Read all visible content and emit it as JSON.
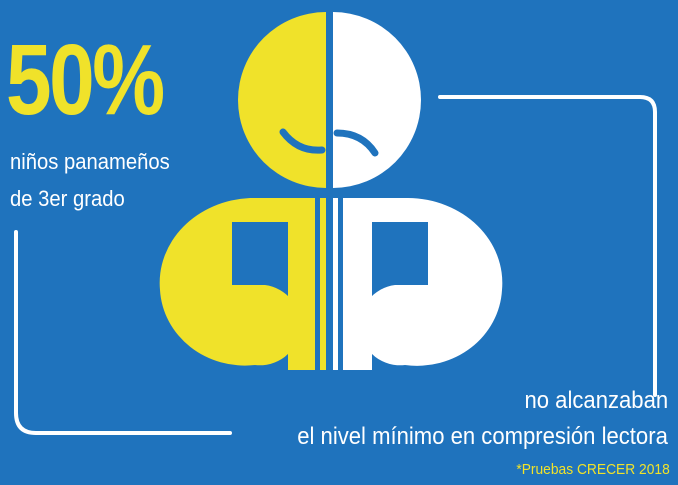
{
  "colors": {
    "background": "#1f73bd",
    "accent_yellow": "#f0e22a",
    "white": "#ffffff"
  },
  "stat": {
    "percent": "50%",
    "line1": "niños panameños",
    "line2": "de 3er grado"
  },
  "result": {
    "line1": "no alcanzaban",
    "line2": "el nivel mínimo en compresión lectora"
  },
  "source": "*Pruebas CRECER 2018",
  "icons": [
    "smiling-face-half-icon",
    "sad-face-half-icon",
    "child-body-half-yellow-icon",
    "child-body-half-white-icon",
    "connector-line-left",
    "connector-line-right"
  ]
}
